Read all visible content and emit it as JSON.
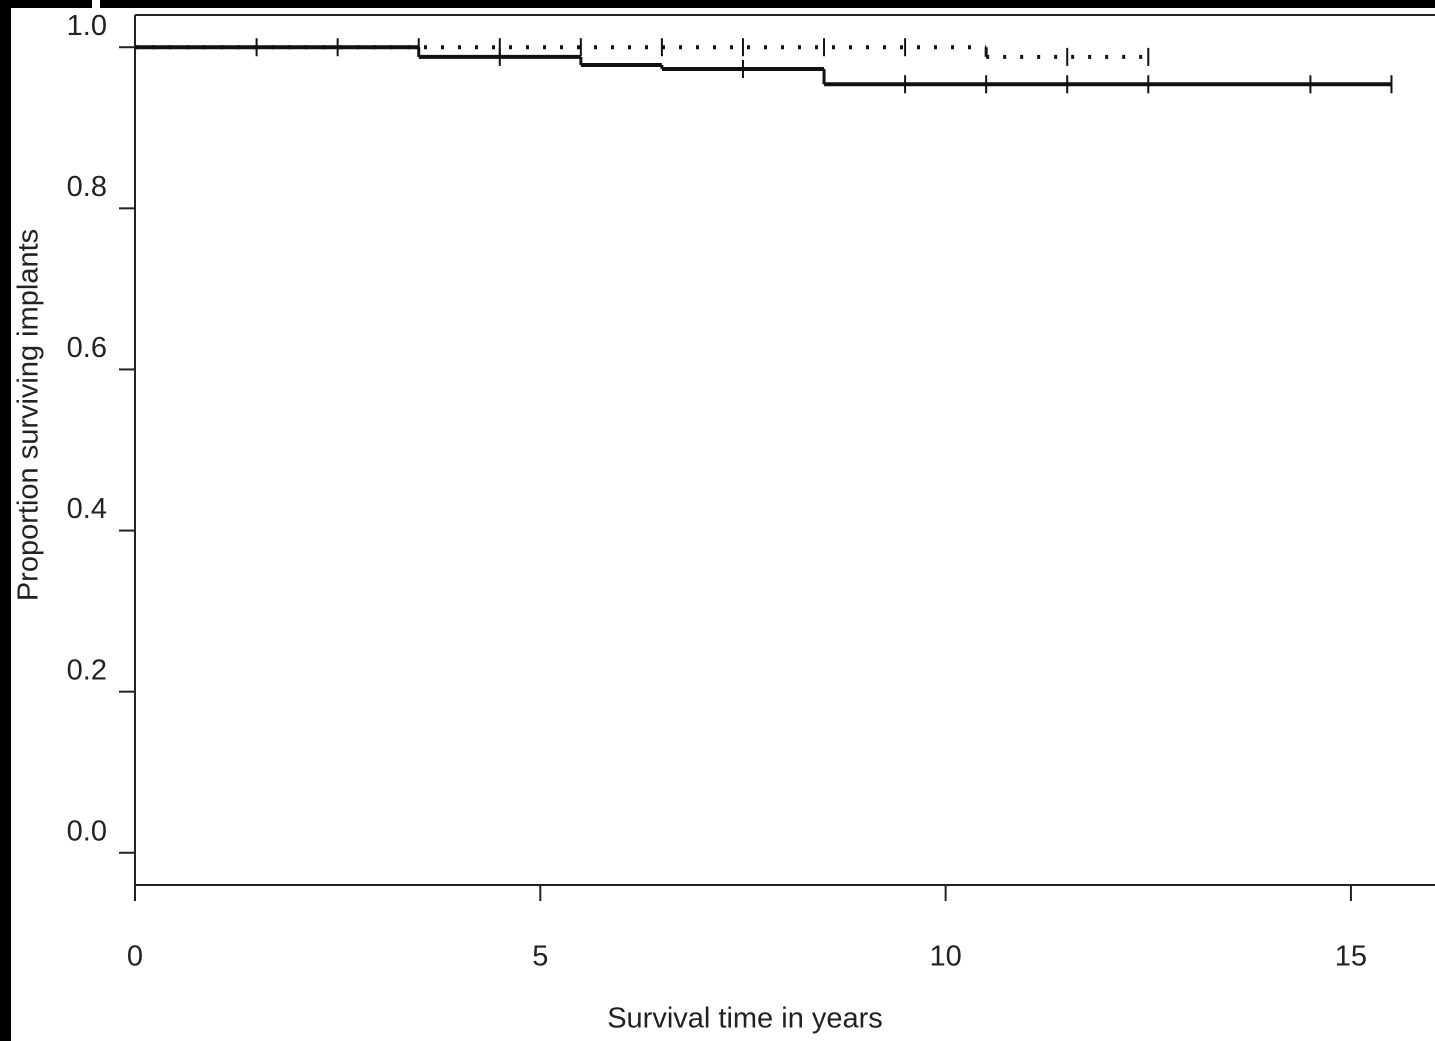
{
  "chart_data": {
    "type": "step",
    "x_label": "Survival time in years",
    "y_label": "Proportion surviving implants",
    "xlim": [
      0,
      16
    ],
    "ylim": [
      -0.04,
      1.04
    ],
    "xticks": [
      0,
      5,
      10,
      15
    ],
    "yticks": [
      {
        "value": 0,
        "label": "0.0"
      },
      0.2,
      0.4,
      0.6,
      0.8,
      {
        "value": 1,
        "label": "1.0"
      }
    ],
    "series": [
      {
        "color": "#111111",
        "line_style": "solid",
        "x": [
          0,
          3.5,
          5.5,
          6.5,
          8.5,
          15.5
        ],
        "values": [
          1,
          0.988,
          0.978,
          0.973,
          0.954,
          0.954
        ],
        "censored": {
          "x": [
            1.5,
            2.5,
            4.5,
            7.5,
            9.5,
            10.5,
            11.5,
            12.5,
            14.5,
            15.5
          ],
          "values": [
            1,
            1,
            0.988,
            0.973,
            0.954,
            0.954,
            0.954,
            0.954,
            0.954,
            0.954
          ]
        }
      },
      {
        "color": "#111111",
        "line_style": "dotted",
        "x": [
          0,
          10.5,
          12.5
        ],
        "values": [
          1,
          0.988,
          0.988
        ],
        "censored": {
          "x": [
            3.5,
            4.5,
            5.5,
            6.5,
            7.5,
            8.5,
            9.5,
            11.5,
            12.5
          ],
          "values": [
            1,
            1,
            1,
            1,
            1,
            1,
            1,
            0.988,
            0.988
          ]
        }
      }
    ]
  }
}
